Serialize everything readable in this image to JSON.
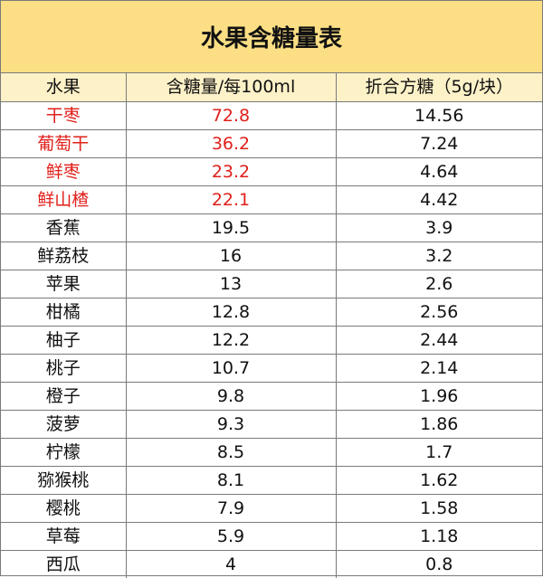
{
  "title": "水果含糖量表",
  "headers": {
    "fruit": "水果",
    "sugar": "含糖量/每100ml",
    "cubes": "折合方糖（5g/块）"
  },
  "colors": {
    "title_bg": "#fcdf85",
    "header_bg": "#fdf1c8",
    "highlight_text": "#e0201b"
  },
  "rows": [
    {
      "fruit": "干枣",
      "sugar": "72.8",
      "cubes": "14.56",
      "highlight": true
    },
    {
      "fruit": "葡萄干",
      "sugar": "36.2",
      "cubes": "7.24",
      "highlight": true
    },
    {
      "fruit": "鲜枣",
      "sugar": "23.2",
      "cubes": "4.64",
      "highlight": true
    },
    {
      "fruit": "鲜山楂",
      "sugar": "22.1",
      "cubes": "4.42",
      "highlight": true
    },
    {
      "fruit": "香蕉",
      "sugar": "19.5",
      "cubes": "3.9",
      "highlight": false
    },
    {
      "fruit": "鲜荔枝",
      "sugar": "16",
      "cubes": "3.2",
      "highlight": false
    },
    {
      "fruit": "苹果",
      "sugar": "13",
      "cubes": "2.6",
      "highlight": false
    },
    {
      "fruit": "柑橘",
      "sugar": "12.8",
      "cubes": "2.56",
      "highlight": false
    },
    {
      "fruit": "柚子",
      "sugar": "12.2",
      "cubes": "2.44",
      "highlight": false
    },
    {
      "fruit": "桃子",
      "sugar": "10.7",
      "cubes": "2.14",
      "highlight": false
    },
    {
      "fruit": "橙子",
      "sugar": "9.8",
      "cubes": "1.96",
      "highlight": false
    },
    {
      "fruit": "菠萝",
      "sugar": "9.3",
      "cubes": "1.86",
      "highlight": false
    },
    {
      "fruit": "柠檬",
      "sugar": "8.5",
      "cubes": "1.7",
      "highlight": false
    },
    {
      "fruit": "猕猴桃",
      "sugar": "8.1",
      "cubes": "1.62",
      "highlight": false
    },
    {
      "fruit": "樱桃",
      "sugar": "7.9",
      "cubes": "1.58",
      "highlight": false
    },
    {
      "fruit": "草莓",
      "sugar": "5.9",
      "cubes": "1.18",
      "highlight": false
    },
    {
      "fruit": "西瓜",
      "sugar": "4",
      "cubes": "0.8",
      "highlight": false
    }
  ]
}
